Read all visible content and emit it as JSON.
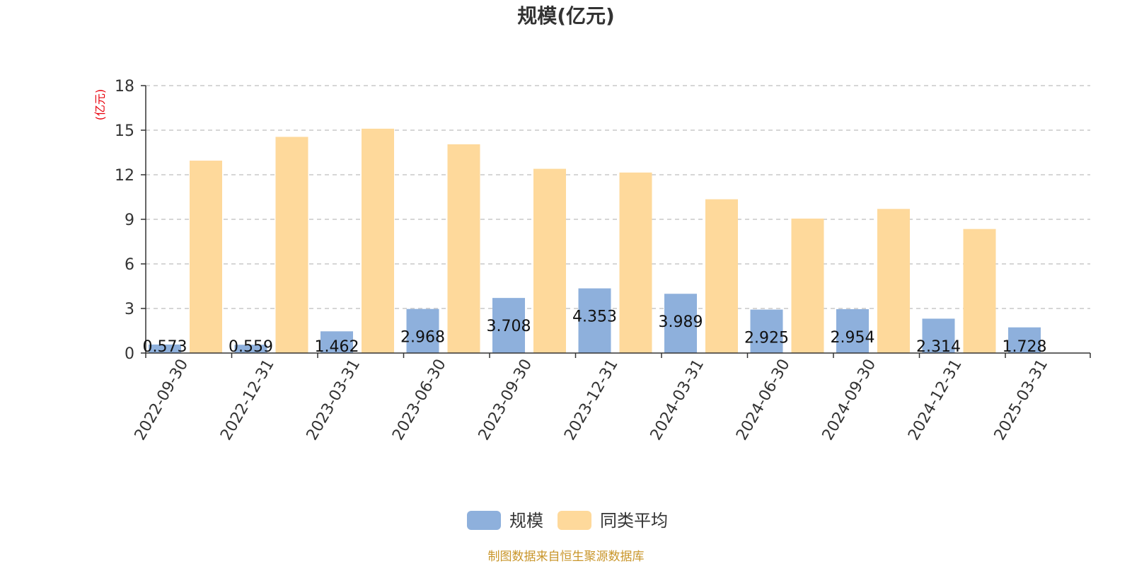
{
  "chart_data": {
    "type": "bar",
    "title": "规模(亿元)",
    "unit_label": "(亿元)",
    "categories": [
      "2022-09-30",
      "2022-12-31",
      "2023-03-31",
      "2023-06-30",
      "2023-09-30",
      "2023-12-31",
      "2024-03-31",
      "2024-06-30",
      "2024-09-30",
      "2024-12-31",
      "2025-03-31"
    ],
    "series": [
      {
        "name": "规模",
        "color": "#8eb0dc",
        "values": [
          0.573,
          0.559,
          1.462,
          2.968,
          3.708,
          4.353,
          3.989,
          2.925,
          2.954,
          2.314,
          1.728
        ],
        "labels": [
          "0.573",
          "0.559",
          "1.462",
          "2.968",
          "3.708",
          "4.353",
          "3.989",
          "2.925",
          "2.954",
          "2.314",
          "1.728"
        ]
      },
      {
        "name": "同类平均",
        "color": "#fed99b",
        "values": [
          12.95,
          14.55,
          15.1,
          14.05,
          12.4,
          12.15,
          10.35,
          9.05,
          9.7,
          8.35,
          null
        ]
      }
    ],
    "y_ticks": [
      "0",
      "3",
      "6",
      "9",
      "12",
      "15",
      "18"
    ],
    "ylim": [
      0,
      18
    ],
    "grid": true,
    "legend": "bottom-center",
    "source": "制图数据来自恒生聚源数据库"
  }
}
